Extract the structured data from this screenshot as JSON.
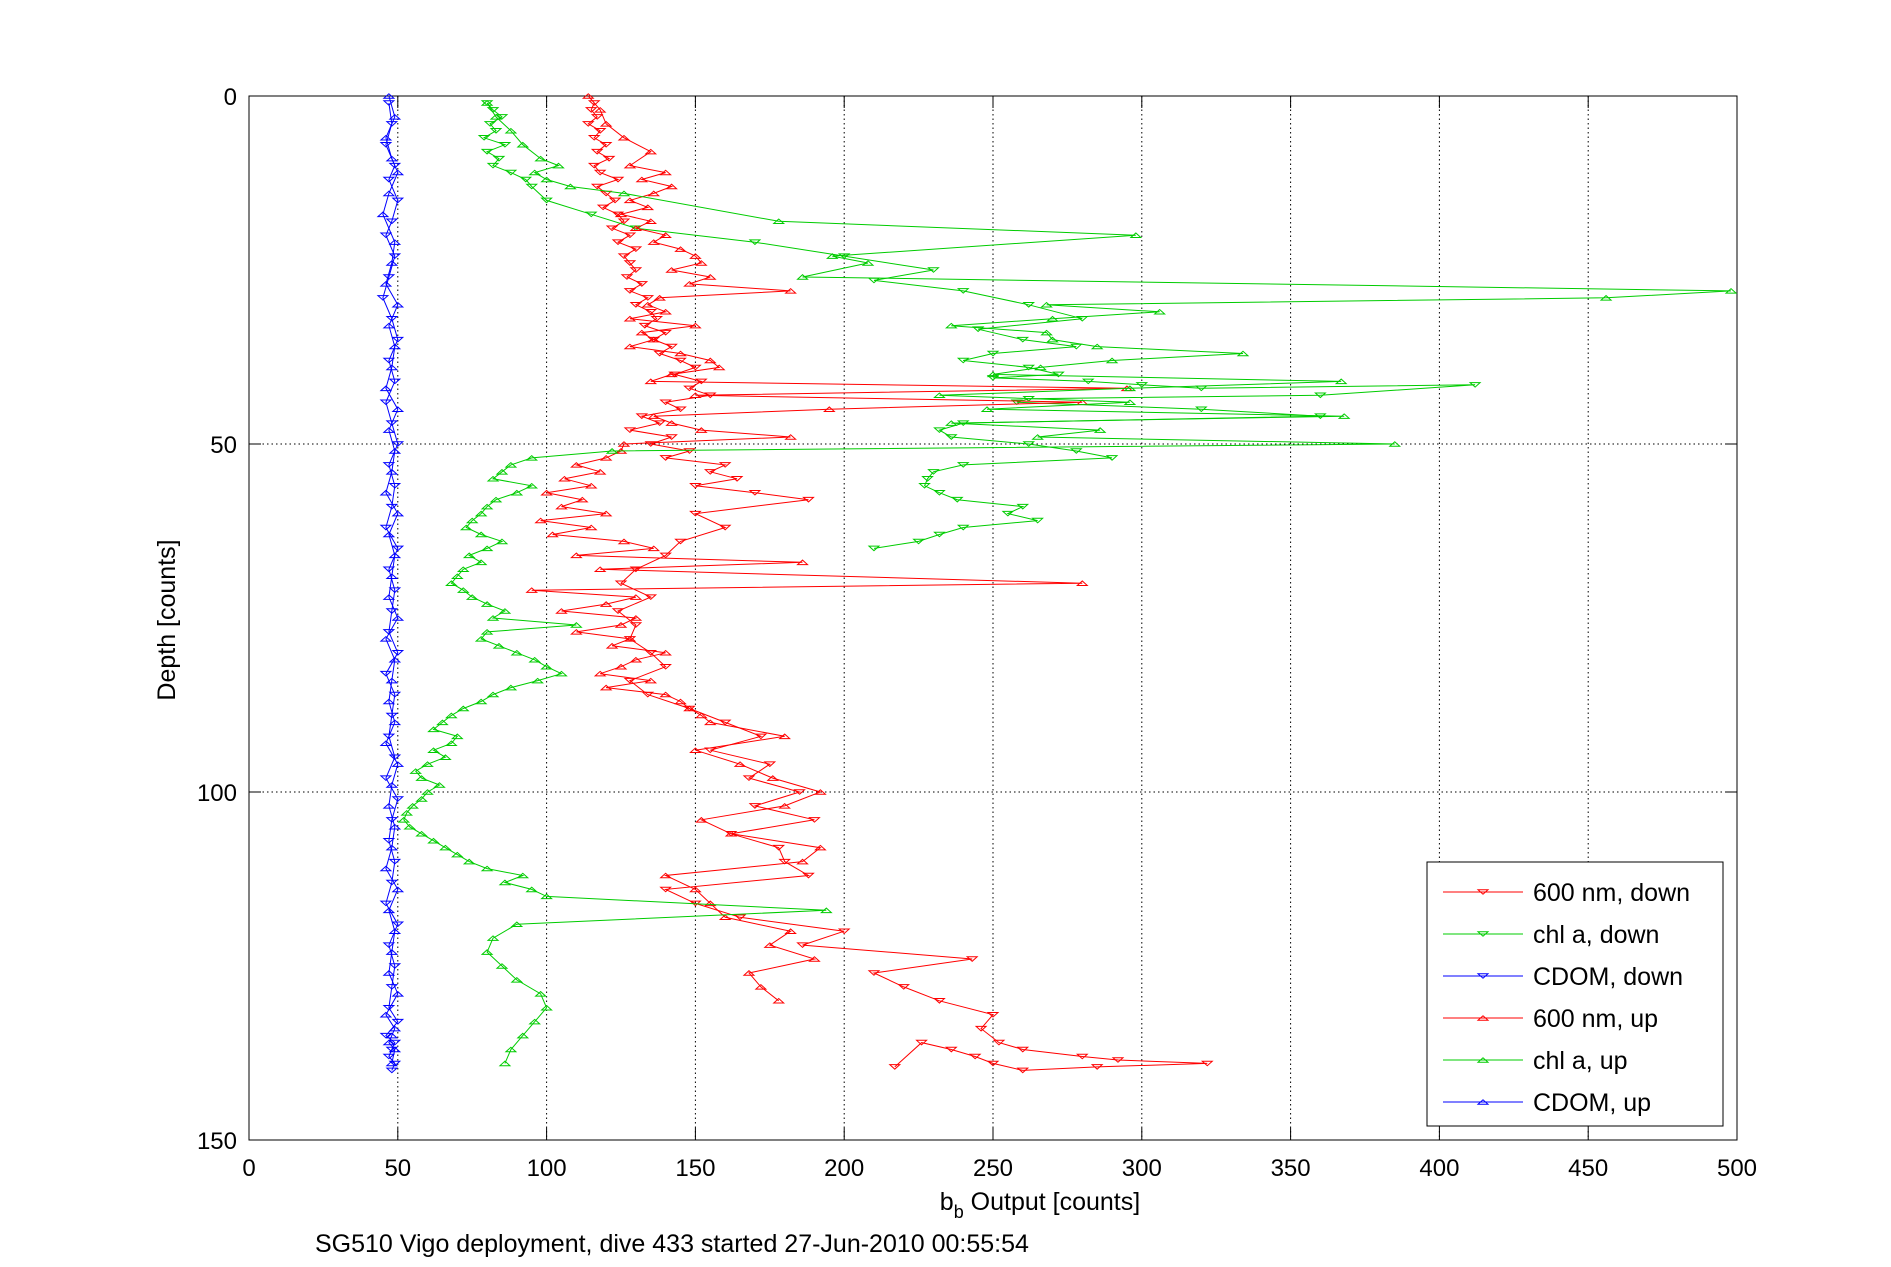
{
  "chart_data": {
    "type": "line",
    "xlabel_main": "b",
    "xlabel_sub": "b",
    "xlabel_rest": " Output [counts]",
    "ylabel": "Depth [counts]",
    "footer": "SG510 Vigo deployment, dive 433 started 27-Jun-2010 00:55:54",
    "xlim": [
      0,
      500
    ],
    "ylim": [
      0,
      150
    ],
    "y_reversed": true,
    "grid": true,
    "legend_position": "bottom-right",
    "x_ticks": [
      0,
      50,
      100,
      150,
      200,
      250,
      300,
      350,
      400,
      450,
      500
    ],
    "y_ticks": [
      0,
      50,
      100,
      150
    ],
    "x_tick_labels": [
      "0",
      "50",
      "100",
      "150",
      "200",
      "250",
      "300",
      "350",
      "400",
      "450",
      "500"
    ],
    "y_tick_labels": [
      "0",
      "50",
      "100",
      "150"
    ],
    "series": [
      {
        "name": "600 nm, down",
        "color": "#ff0000",
        "marker": "triangle-down",
        "x": [
          116,
          115,
          117,
          114,
          118,
          116,
          120,
          117,
          121,
          116,
          118,
          124,
          117,
          120,
          123,
          119,
          124,
          126,
          122,
          128,
          124,
          130,
          126,
          128,
          130,
          127,
          132,
          128,
          134,
          130,
          135,
          137,
          133,
          140,
          136,
          142,
          138,
          145,
          150,
          143,
          152,
          148,
          155,
          140,
          145,
          132,
          138,
          128,
          142,
          135,
          148,
          140,
          160,
          155,
          164,
          150,
          170,
          188,
          150,
          160,
          145,
          140,
          130,
          125,
          135,
          124,
          130,
          128,
          135,
          140,
          128,
          134,
          148,
          160,
          172,
          155,
          175,
          168,
          185,
          170,
          190,
          162,
          178,
          180,
          188,
          140,
          150,
          165,
          200,
          186,
          243,
          210,
          220,
          232,
          250,
          246,
          252,
          260,
          280,
          292,
          322,
          285,
          260,
          250,
          244,
          236,
          226,
          217
        ],
        "y": [
          1,
          2,
          3,
          4,
          5,
          6,
          7,
          8,
          9,
          10,
          11,
          12,
          13,
          14,
          15,
          16,
          17,
          18,
          19,
          20,
          21,
          22,
          23,
          24,
          25,
          26,
          27,
          28,
          29,
          30,
          31,
          32,
          33,
          34,
          35,
          36,
          37,
          38,
          39,
          40,
          41,
          42,
          43,
          44,
          45,
          46,
          47,
          48,
          49,
          50,
          51,
          52,
          53,
          54,
          55,
          56,
          57,
          58,
          60,
          62,
          64,
          66,
          68,
          70,
          72,
          74,
          76,
          78,
          80,
          82,
          84,
          86,
          88,
          90,
          92,
          94,
          96,
          98,
          100,
          102,
          104,
          106,
          108,
          110,
          112,
          114,
          116,
          118,
          120,
          122,
          124,
          126,
          128,
          130,
          132,
          134,
          136,
          137,
          138,
          138.5,
          139,
          139.5,
          140,
          139,
          138,
          137,
          136,
          139.5
        ]
      },
      {
        "name": "chl a, down",
        "color": "#00cc00",
        "marker": "triangle-down",
        "x": [
          80,
          82,
          85,
          81,
          83,
          79,
          86,
          80,
          84,
          82,
          88,
          93,
          95,
          100,
          115,
          130,
          170,
          200,
          230,
          210,
          240,
          262,
          280,
          245,
          260,
          278,
          250,
          240,
          262,
          272,
          250,
          282,
          300,
          320,
          412,
          360,
          262,
          258,
          320,
          360,
          240,
          232,
          236,
          262,
          278,
          290,
          240,
          230,
          228,
          227,
          232,
          238,
          260,
          255,
          265,
          240,
          232,
          225,
          210
        ],
        "y": [
          1,
          2,
          3,
          4,
          5,
          6,
          7,
          8,
          9,
          10,
          11,
          12,
          13,
          15,
          17,
          19,
          21,
          23,
          25,
          26.5,
          28,
          30,
          32,
          33.5,
          35,
          36,
          37,
          38,
          39,
          40,
          40.5,
          41,
          41.5,
          42,
          41.5,
          43,
          43.5,
          44,
          45,
          46,
          47,
          48,
          49,
          50,
          51,
          52,
          53,
          54,
          55,
          56,
          57,
          58,
          59,
          60,
          61,
          62,
          63,
          64,
          65
        ]
      },
      {
        "name": "CDOM, down",
        "color": "#0000ff",
        "marker": "triangle-down",
        "x": [
          47,
          48,
          46,
          49,
          47,
          50,
          48,
          46,
          49,
          47,
          45,
          48,
          50,
          47,
          49,
          46,
          48,
          50,
          47,
          49,
          48,
          46,
          50,
          47,
          49,
          48,
          47,
          50,
          46,
          49,
          48,
          47,
          49,
          46,
          50,
          48,
          47,
          49,
          48,
          46,
          50,
          47,
          49,
          48,
          47,
          50,
          46,
          49,
          48,
          47,
          49,
          48
        ],
        "y": [
          1,
          4,
          7,
          10,
          12,
          15,
          18,
          20,
          23,
          26,
          29,
          32,
          35,
          38,
          41,
          44,
          47,
          50,
          53,
          56,
          59,
          62,
          65,
          68,
          71,
          74,
          77,
          80,
          83,
          86,
          89,
          92,
          95,
          98,
          101,
          104,
          107,
          110,
          113,
          116,
          119,
          122,
          125,
          128,
          131,
          133,
          135,
          136,
          137,
          138,
          139,
          140
        ]
      },
      {
        "name": "600 nm, up",
        "color": "#ff0000",
        "marker": "triangle-up",
        "x": [
          114,
          118,
          120,
          126,
          135,
          128,
          140,
          132,
          142,
          136,
          128,
          134,
          125,
          135,
          130,
          140,
          136,
          145,
          150,
          152,
          142,
          155,
          148,
          182,
          138,
          134,
          140,
          128,
          150,
          132,
          136,
          128,
          145,
          155,
          158,
          142,
          135,
          295,
          150,
          280,
          195,
          136,
          142,
          152,
          182,
          126,
          125,
          120,
          110,
          118,
          106,
          115,
          100,
          112,
          105,
          120,
          98,
          115,
          102,
          126,
          136,
          110,
          186,
          118,
          280,
          95,
          130,
          120,
          105,
          130,
          125,
          110,
          128,
          122,
          140,
          130,
          125,
          118,
          135,
          120,
          140,
          145,
          148,
          152,
          155,
          180,
          150,
          165,
          176,
          192,
          180,
          152,
          162,
          192,
          186,
          140,
          150,
          155,
          160,
          182,
          175,
          190,
          168,
          172,
          178
        ],
        "y": [
          0,
          2,
          4,
          6,
          8,
          10,
          11,
          12,
          13,
          14,
          15,
          16,
          17,
          18,
          19,
          20,
          21,
          22,
          23,
          24,
          25,
          26,
          27,
          28,
          29,
          30,
          31,
          32,
          33,
          34,
          35,
          36,
          37,
          38,
          39,
          40,
          41,
          42,
          43,
          44,
          45,
          46,
          47,
          48,
          49,
          50,
          51,
          52,
          53,
          54,
          55,
          56,
          57,
          58,
          59,
          60,
          61,
          62,
          63,
          64,
          65,
          66,
          67,
          68,
          70,
          71,
          72,
          73,
          74,
          75,
          76,
          77,
          78,
          79,
          80,
          81,
          82,
          83,
          84,
          85,
          86,
          87,
          88,
          89,
          90,
          92,
          94,
          96,
          98,
          100,
          102,
          104,
          106,
          108,
          110,
          112,
          114,
          116,
          118,
          120,
          122,
          124,
          126,
          128,
          130
        ]
      },
      {
        "name": "chl a, up",
        "color": "#00cc00",
        "marker": "triangle-up",
        "x": [
          80,
          83,
          88,
          92,
          98,
          104,
          96,
          100,
          108,
          126,
          178,
          298,
          196,
          208,
          186,
          498,
          456,
          268,
          306,
          270,
          236,
          268,
          270,
          285,
          334,
          290,
          266,
          250,
          367,
          296,
          232,
          296,
          248,
          368,
          236,
          286,
          265,
          385,
          122,
          95,
          88,
          85,
          82,
          95,
          90,
          83,
          80,
          78,
          75,
          73,
          78,
          85,
          80,
          74,
          78,
          72,
          70,
          68,
          72,
          75,
          80,
          86,
          82,
          110,
          80,
          78,
          84,
          90,
          96,
          100,
          105,
          97,
          88,
          82,
          78,
          72,
          68,
          65,
          62,
          70,
          68,
          62,
          66,
          60,
          56,
          58,
          64,
          60,
          58,
          55,
          53,
          52,
          54,
          58,
          62,
          66,
          70,
          74,
          80,
          92,
          86,
          95,
          100,
          194,
          90,
          82,
          80,
          85,
          90,
          98,
          100,
          96,
          92,
          88,
          86
        ],
        "y": [
          1,
          3,
          5,
          7,
          9,
          10,
          11,
          12,
          13,
          14,
          18,
          20,
          23,
          24,
          26,
          28,
          29,
          30,
          31,
          32,
          33,
          34,
          35,
          36,
          37,
          38,
          39,
          40,
          41,
          42,
          43,
          44,
          45,
          46,
          47,
          48,
          49,
          50,
          51,
          52,
          53,
          54,
          55,
          56,
          57,
          58,
          59,
          60,
          61,
          62,
          63,
          64,
          65,
          66,
          67,
          68,
          69,
          70,
          71,
          72,
          73,
          74,
          75,
          76,
          77,
          78,
          79,
          80,
          81,
          82,
          83,
          84,
          85,
          86,
          87,
          88,
          89,
          90,
          91,
          92,
          93,
          94,
          95,
          96,
          97,
          98,
          99,
          100,
          101,
          102,
          103,
          104,
          105,
          106,
          107,
          108,
          109,
          110,
          111,
          112,
          113,
          114,
          115,
          117,
          119,
          121,
          123,
          125,
          127,
          129,
          131,
          133,
          135,
          137,
          139
        ]
      },
      {
        "name": "CDOM, up",
        "color": "#0000ff",
        "marker": "triangle-up",
        "x": [
          47,
          49,
          46,
          48,
          50,
          47,
          45,
          49,
          48,
          46,
          50,
          47,
          49,
          48,
          46,
          50,
          47,
          49,
          48,
          46,
          50,
          47,
          49,
          48,
          47,
          50,
          46,
          49,
          48,
          47,
          49,
          46,
          50,
          48,
          47,
          49,
          48,
          46,
          50,
          47,
          49,
          48,
          47,
          50,
          46,
          49,
          48,
          47,
          49,
          48
        ],
        "y": [
          0,
          3,
          6,
          9,
          11,
          14,
          17,
          21,
          24,
          27,
          30,
          33,
          36,
          39,
          42,
          45,
          48,
          51,
          54,
          57,
          60,
          63,
          66,
          69,
          72,
          75,
          78,
          81,
          84,
          87,
          90,
          93,
          96,
          99,
          102,
          105,
          108,
          111,
          114,
          117,
          120,
          123,
          126,
          129,
          132,
          134,
          135,
          136,
          137,
          139
        ]
      }
    ]
  }
}
